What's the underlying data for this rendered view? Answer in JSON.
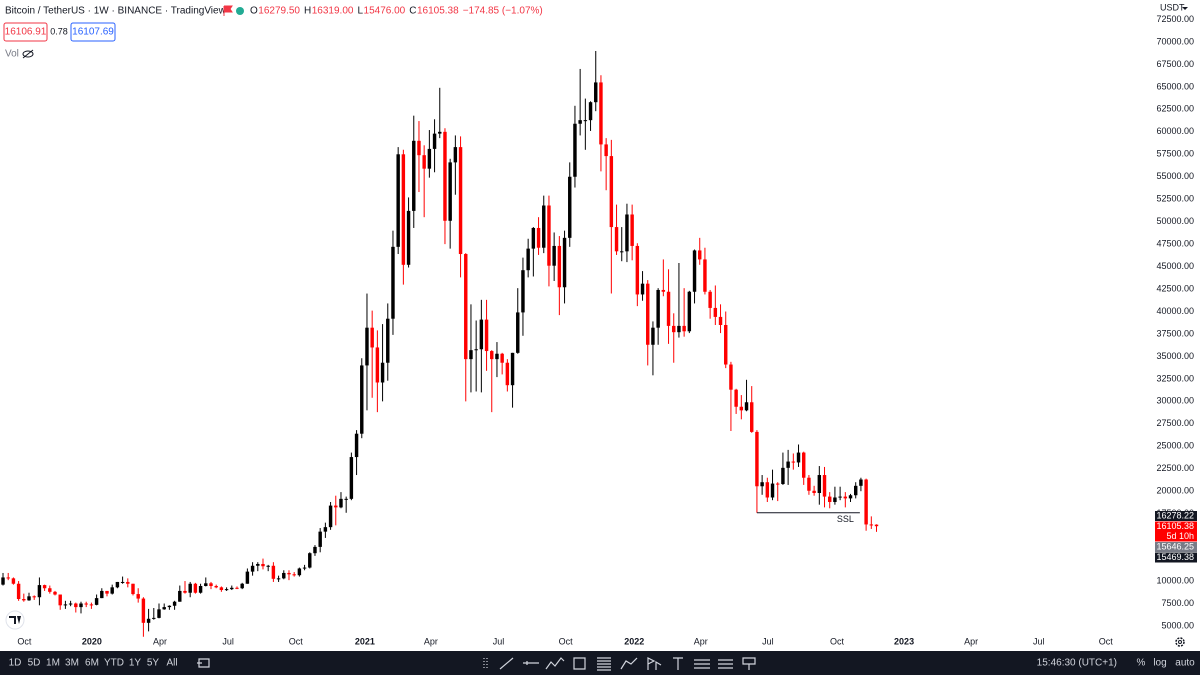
{
  "header": {
    "title": "Bitcoin / TetherUS · 1W · BINANCE · TradingView",
    "legend": [
      {
        "key": "O",
        "value": "16279.50"
      },
      {
        "key": "H",
        "value": "16319.00"
      },
      {
        "key": "L",
        "value": "15476.00"
      },
      {
        "key": "C",
        "value": "16105.38"
      }
    ],
    "change": "−174.85 (−1.07%)",
    "bid": "16106.91",
    "spread": "0.78",
    "ask": "16107.69",
    "volume": "Vol",
    "currency": "USDT"
  },
  "chart_data": {
    "type": "candlestick",
    "up_color": "#000000",
    "down_color": "#ff0000",
    "grid": false,
    "x": [
      0,
      1,
      2,
      3,
      4,
      5,
      6,
      7,
      8,
      9,
      10,
      11,
      12,
      13,
      14,
      15,
      16,
      17,
      18,
      19,
      20,
      21,
      22,
      23,
      24,
      25,
      26,
      27,
      28,
      29,
      30,
      31,
      32,
      33,
      34,
      35,
      36,
      37,
      38,
      39,
      40,
      41,
      42,
      43,
      44,
      45,
      46,
      47,
      48,
      49,
      50,
      51,
      52,
      53,
      54,
      55,
      56,
      57,
      58,
      59,
      60,
      61,
      62,
      63,
      64,
      65,
      66,
      67,
      68,
      69,
      70,
      71,
      72,
      73,
      74,
      75,
      76,
      77,
      78,
      79,
      80,
      81,
      82,
      83,
      84,
      85,
      86,
      87,
      88,
      89,
      90,
      91,
      92,
      93,
      94,
      95,
      96,
      97,
      98,
      99,
      100,
      101,
      102,
      103,
      104,
      105,
      106,
      107,
      108,
      109,
      110,
      111,
      112,
      113,
      114,
      115,
      116,
      117,
      118,
      119,
      120,
      121,
      122,
      123,
      124,
      125,
      126,
      127,
      128,
      129,
      130,
      131,
      132,
      133,
      134,
      135,
      136,
      137,
      138,
      139,
      140,
      141,
      142,
      143,
      144,
      145,
      146,
      147,
      148,
      149,
      150,
      151,
      152,
      153,
      154,
      155,
      156,
      157,
      158,
      159,
      160,
      161,
      162,
      163,
      164,
      165,
      166,
      167,
      168
    ],
    "open": [
      9600,
      10400,
      10300,
      9700,
      8000,
      7850,
      8300,
      8200,
      9550,
      9200,
      8800,
      8500,
      7300,
      7400,
      7500,
      7100,
      7500,
      7400,
      7350,
      8100,
      8900,
      8600,
      9300,
      9900,
      9900,
      9700,
      8550,
      8050,
      5350,
      5800,
      5900,
      6850,
      7100,
      7250,
      7700,
      8900,
      8700,
      9700,
      8700,
      9450,
      9750,
      9450,
      9300,
      9000,
      9100,
      9250,
      9200,
      9700,
      11050,
      11700,
      11900,
      11650,
      11700,
      10250,
      10300,
      10900,
      10750,
      10650,
      11400,
      11500,
      13100,
      13800,
      15500,
      16000,
      18400,
      18200,
      19150,
      19150,
      23800,
      26400,
      34000,
      38200,
      36000,
      32100,
      34300,
      39200,
      47200,
      57500,
      45200,
      51200,
      59000,
      57400,
      55900,
      58100,
      59800,
      60000,
      50100,
      56600,
      58300,
      46400,
      34700,
      35700,
      35800,
      39100,
      35600,
      34700,
      35300,
      34300,
      31800,
      35400,
      39900,
      44600,
      47000,
      49300,
      47100,
      51800,
      45100,
      47300,
      42700,
      48200,
      55000,
      60900,
      61300,
      61300,
      63300,
      65500,
      58600,
      57300,
      49400,
      46700,
      46700,
      50800,
      47300,
      41900,
      43100,
      36300,
      38200,
      42400,
      42200,
      38400,
      37700,
      38400,
      37800,
      42200,
      46800,
      45800,
      42200,
      40400,
      39400,
      38500,
      34100,
      31300,
      29400,
      29000,
      29900,
      26600,
      20550,
      21000,
      19300,
      20850,
      20800,
      22600,
      23300,
      23200,
      24300,
      21500,
      20050,
      19800,
      21800,
      19400,
      18800,
      19300,
      19400,
      19200,
      19550,
      20600,
      21300,
      16300,
      16279.5
    ],
    "high": [
      10900,
      10900,
      10400,
      10000,
      8600,
      8700,
      8400,
      10400,
      9600,
      9500,
      8900,
      8500,
      7800,
      7800,
      7600,
      7700,
      7700,
      7600,
      8500,
      9200,
      8900,
      9600,
      9900,
      10500,
      10300,
      9700,
      9200,
      8200,
      6900,
      7000,
      7500,
      7500,
      7300,
      7800,
      9500,
      10000,
      9900,
      9800,
      9700,
      10400,
      9900,
      9600,
      9400,
      9300,
      9500,
      9400,
      9800,
      11400,
      12100,
      12100,
      12500,
      11800,
      12100,
      10600,
      11200,
      11200,
      11000,
      11500,
      11800,
      13200,
      14000,
      15900,
      16500,
      18800,
      19500,
      19900,
      19400,
      24300,
      26800,
      34800,
      42000,
      40100,
      37900,
      38600,
      40900,
      49000,
      58300,
      58000,
      52700,
      61800,
      61200,
      58500,
      60200,
      61400,
      64900,
      60400,
      57000,
      59600,
      59500,
      46500,
      40800,
      39000,
      41300,
      41300,
      35700,
      36600,
      35400,
      34700,
      35400,
      42600,
      46000,
      48100,
      49400,
      50500,
      52900,
      52900,
      48800,
      48400,
      49000,
      56600,
      62900,
      67000,
      63700,
      63400,
      69000,
      66300,
      59300,
      59100,
      51900,
      49400,
      52000,
      51900,
      47600,
      44500,
      43500,
      38900,
      42600,
      45800,
      44700,
      39800,
      45400,
      42600,
      42300,
      46900,
      48200,
      47100,
      42400,
      42900,
      40800,
      40000,
      34400,
      31400,
      30700,
      32400,
      31700,
      26800,
      21800,
      21500,
      22400,
      21000,
      24300,
      24600,
      24200,
      25200,
      24400,
      21800,
      20600,
      22800,
      22700,
      19900,
      20500,
      20500,
      19900,
      19700,
      21000,
      21500,
      21400,
      17200,
      16319
    ],
    "low": [
      9500,
      10100,
      9600,
      7800,
      7700,
      7800,
      7900,
      7300,
      8900,
      8600,
      8400,
      6800,
      6900,
      7200,
      6500,
      6400,
      7100,
      6900,
      7300,
      8100,
      8300,
      8500,
      9200,
      9700,
      9300,
      8400,
      7600,
      3800,
      4400,
      5700,
      5850,
      6800,
      6800,
      6800,
      7700,
      8600,
      8200,
      8600,
      8600,
      9400,
      9100,
      9200,
      8800,
      8900,
      9000,
      9100,
      9100,
      9700,
      10600,
      11100,
      11300,
      11100,
      9900,
      9900,
      10200,
      10100,
      10500,
      10500,
      11200,
      11400,
      12800,
      13200,
      14800,
      15700,
      16200,
      18100,
      17600,
      19000,
      21800,
      25900,
      29000,
      30400,
      28800,
      30000,
      32300,
      37400,
      46400,
      43000,
      44900,
      49300,
      53300,
      50500,
      54900,
      55500,
      59300,
      47500,
      47000,
      53000,
      43800,
      30000,
      31000,
      31100,
      31000,
      33400,
      28800,
      32700,
      33000,
      31100,
      29300,
      35300,
      37300,
      43800,
      43900,
      46300,
      46500,
      42800,
      43400,
      39600,
      40900,
      47200,
      53800,
      59600,
      58000,
      60100,
      62300,
      55600,
      53500,
      42000,
      46300,
      45600,
      45500,
      45700,
      40600,
      41200,
      34000,
      32900,
      36300,
      41700,
      36400,
      34300,
      37100,
      37200,
      37600,
      40900,
      45200,
      41900,
      39200,
      38500,
      37600,
      33700,
      26700,
      28600,
      28000,
      28900,
      26500,
      17600,
      19600,
      18800,
      19000,
      18900,
      20700,
      20700,
      22400,
      22700,
      20700,
      19600,
      19500,
      18500,
      18200,
      18100,
      18500,
      19000,
      18200,
      18800,
      19200,
      20000,
      15600,
      15800,
      15476
    ],
    "close": [
      10400,
      10300,
      9700,
      8000,
      7850,
      8300,
      8200,
      9550,
      9200,
      8800,
      8500,
      7300,
      7400,
      7500,
      7100,
      7500,
      7400,
      7350,
      8100,
      8900,
      8600,
      9300,
      9900,
      9900,
      9700,
      8550,
      8050,
      5350,
      5800,
      5900,
      6850,
      7100,
      7250,
      7700,
      8900,
      8700,
      9700,
      8700,
      9450,
      9750,
      9450,
      9300,
      9000,
      9100,
      9250,
      9200,
      9700,
      11050,
      11700,
      11900,
      11650,
      11700,
      10250,
      10300,
      10900,
      10750,
      10650,
      11400,
      11500,
      13100,
      13800,
      15500,
      16000,
      18400,
      18200,
      19150,
      19150,
      23800,
      26400,
      34000,
      38200,
      36000,
      32100,
      34300,
      39200,
      47200,
      57500,
      45200,
      51200,
      59000,
      57400,
      55900,
      58100,
      59800,
      60000,
      50100,
      56600,
      58300,
      46400,
      34700,
      35700,
      35800,
      39100,
      35600,
      34700,
      35300,
      34300,
      31800,
      35400,
      39900,
      44600,
      47000,
      49300,
      47100,
      51800,
      45100,
      47300,
      42700,
      48200,
      55000,
      60900,
      61300,
      61300,
      63300,
      65500,
      58600,
      57300,
      49400,
      46700,
      46700,
      50800,
      47300,
      41900,
      43100,
      36300,
      38200,
      42400,
      42200,
      38400,
      37700,
      38400,
      37800,
      42200,
      46800,
      45800,
      42200,
      40400,
      39400,
      38500,
      34100,
      31300,
      29400,
      29000,
      29900,
      26600,
      20550,
      21000,
      19300,
      20850,
      20800,
      22600,
      23300,
      23200,
      24300,
      21500,
      20050,
      19800,
      21800,
      19400,
      18800,
      19300,
      19400,
      19200,
      19550,
      20600,
      21300,
      16300,
      16279.5,
      16105.38
    ],
    "xlim": [
      -0.58,
      220.6
    ],
    "xticks": [
      {
        "value": 4.1,
        "label": "Oct"
      },
      {
        "value": 17.1,
        "label": "2020"
      },
      {
        "value": 30.2,
        "label": "Apr"
      },
      {
        "value": 43.3,
        "label": "Jul"
      },
      {
        "value": 56.3,
        "label": "Oct"
      },
      {
        "value": 69.6,
        "label": "2021"
      },
      {
        "value": 82.3,
        "label": "Apr"
      },
      {
        "value": 95.3,
        "label": "Jul"
      },
      {
        "value": 108.2,
        "label": "Oct"
      },
      {
        "value": 121.4,
        "label": "2022"
      },
      {
        "value": 134.2,
        "label": "Apr"
      },
      {
        "value": 147.1,
        "label": "Jul"
      },
      {
        "value": 160.4,
        "label": "Oct"
      },
      {
        "value": 173.3,
        "label": "2023"
      },
      {
        "value": 186.2,
        "label": "Apr"
      },
      {
        "value": 199.2,
        "label": "Jul"
      },
      {
        "value": 212.1,
        "label": "Oct"
      }
    ],
    "ylim": [
      3750,
      73750
    ],
    "yticks": [
      {
        "value": 5000,
        "label": "5000.00"
      },
      {
        "value": 7500,
        "label": "7500.00"
      },
      {
        "value": 10000,
        "label": "10000.00"
      },
      {
        "value": 12500,
        "label": "12500.00"
      },
      {
        "value": 15000,
        "label": "15000.00"
      },
      {
        "value": 17500,
        "label": "17500.00"
      },
      {
        "value": 20000,
        "label": "20000.00"
      },
      {
        "value": 22500,
        "label": "22500.00"
      },
      {
        "value": 25000,
        "label": "25000.00"
      },
      {
        "value": 27500,
        "label": "27500.00"
      },
      {
        "value": 30000,
        "label": "30000.00"
      },
      {
        "value": 32500,
        "label": "32500.00"
      },
      {
        "value": 35000,
        "label": "35000.00"
      },
      {
        "value": 37500,
        "label": "37500.00"
      },
      {
        "value": 40000,
        "label": "40000.00"
      },
      {
        "value": 42500,
        "label": "42500.00"
      },
      {
        "value": 45000,
        "label": "45000.00"
      },
      {
        "value": 47500,
        "label": "47500.00"
      },
      {
        "value": 50000,
        "label": "50000.00"
      },
      {
        "value": 52500,
        "label": "52500.00"
      },
      {
        "value": 55000,
        "label": "55000.00"
      },
      {
        "value": 57500,
        "label": "57500.00"
      },
      {
        "value": 60000,
        "label": "60000.00"
      },
      {
        "value": 62500,
        "label": "62500.00"
      },
      {
        "value": 65000,
        "label": "65000.00"
      },
      {
        "value": 67500,
        "label": "67500.00"
      },
      {
        "value": 70000,
        "label": "70000.00"
      },
      {
        "value": 72500,
        "label": "72500.00"
      }
    ],
    "ssl": {
      "label": "SSL",
      "price": 17600,
      "x_start": 145,
      "x_end": 164.8
    },
    "price_labels": [
      {
        "label": "16278.22",
        "color": "#131722"
      },
      {
        "label": "16105.38",
        "color": "#ff0000",
        "countdown": "5d 10h"
      },
      {
        "label": "15646.25",
        "color": "#787b86"
      },
      {
        "label": "15469.38",
        "color": "#131722"
      }
    ]
  },
  "toolbar": {
    "ranges": [
      "1D",
      "5D",
      "1M",
      "3M",
      "6M",
      "YTD",
      "1Y",
      "5Y",
      "All"
    ],
    "time": "15:46:30 (UTC+1)",
    "options": [
      "%",
      "log",
      "auto"
    ]
  }
}
